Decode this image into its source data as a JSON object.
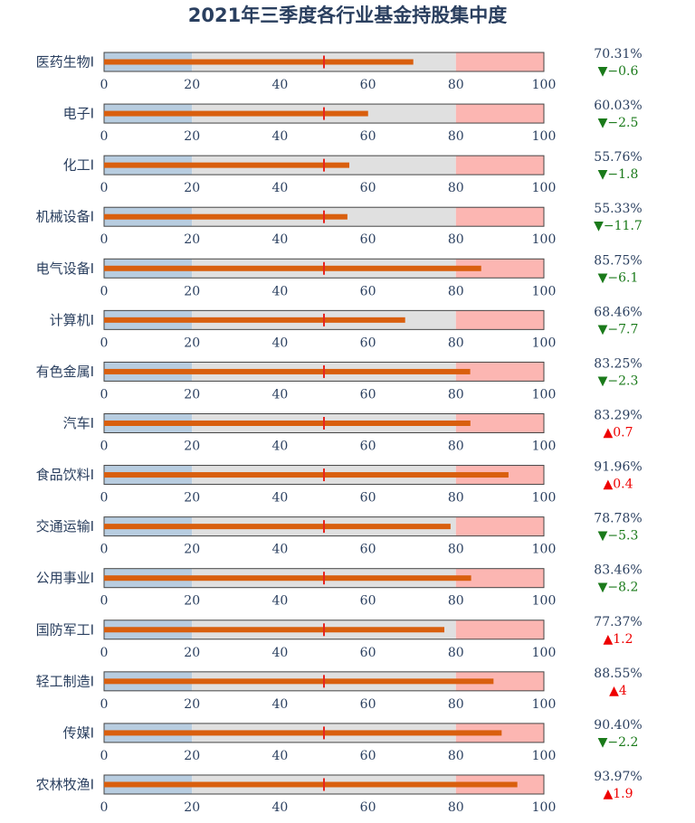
{
  "chart_data": {
    "type": "bullet",
    "title": "2021年三季度各行业基金持股集中度",
    "xlim": [
      0,
      100
    ],
    "ticks": [
      0,
      20,
      40,
      60,
      80,
      100
    ],
    "ranges": [
      {
        "from": 0,
        "to": 20,
        "color": "#b8cde0"
      },
      {
        "from": 20,
        "to": 80,
        "color": "#e0e0e0"
      },
      {
        "from": 80,
        "to": 100,
        "color": "#fcb6b2"
      }
    ],
    "target": 50,
    "bar_color": "#d95f0e",
    "target_color": "#e8251f",
    "up_color": "#ee0000",
    "down_color": "#1a7a1a",
    "rows": [
      {
        "label": "医药生物I",
        "value": 70.31,
        "value_text": "70.31%",
        "delta": -0.6,
        "delta_text": "▼−0.6"
      },
      {
        "label": "电子I",
        "value": 60.03,
        "value_text": "60.03%",
        "delta": -2.5,
        "delta_text": "▼−2.5"
      },
      {
        "label": "化工I",
        "value": 55.76,
        "value_text": "55.76%",
        "delta": -1.8,
        "delta_text": "▼−1.8"
      },
      {
        "label": "机械设备I",
        "value": 55.33,
        "value_text": "55.33%",
        "delta": -11.7,
        "delta_text": "▼−11.7"
      },
      {
        "label": "电气设备I",
        "value": 85.75,
        "value_text": "85.75%",
        "delta": -6.1,
        "delta_text": "▼−6.1"
      },
      {
        "label": "计算机I",
        "value": 68.46,
        "value_text": "68.46%",
        "delta": -7.7,
        "delta_text": "▼−7.7"
      },
      {
        "label": "有色金属I",
        "value": 83.25,
        "value_text": "83.25%",
        "delta": -2.3,
        "delta_text": "▼−2.3"
      },
      {
        "label": "汽车I",
        "value": 83.29,
        "value_text": "83.29%",
        "delta": 0.7,
        "delta_text": "▲0.7"
      },
      {
        "label": "食品饮料I",
        "value": 91.96,
        "value_text": "91.96%",
        "delta": 0.4,
        "delta_text": "▲0.4"
      },
      {
        "label": "交通运输I",
        "value": 78.78,
        "value_text": "78.78%",
        "delta": -5.3,
        "delta_text": "▼−5.3"
      },
      {
        "label": "公用事业I",
        "value": 83.46,
        "value_text": "83.46%",
        "delta": -8.2,
        "delta_text": "▼−8.2"
      },
      {
        "label": "国防军工I",
        "value": 77.37,
        "value_text": "77.37%",
        "delta": 1.2,
        "delta_text": "▲1.2"
      },
      {
        "label": "轻工制造I",
        "value": 88.55,
        "value_text": "88.55%",
        "delta": 4,
        "delta_text": "▲4"
      },
      {
        "label": "传媒I",
        "value": 90.4,
        "value_text": "90.40%",
        "delta": -2.2,
        "delta_text": "▼−2.2"
      },
      {
        "label": "农林牧渔I",
        "value": 93.97,
        "value_text": "93.97%",
        "delta": 1.9,
        "delta_text": "▲1.9"
      }
    ]
  }
}
